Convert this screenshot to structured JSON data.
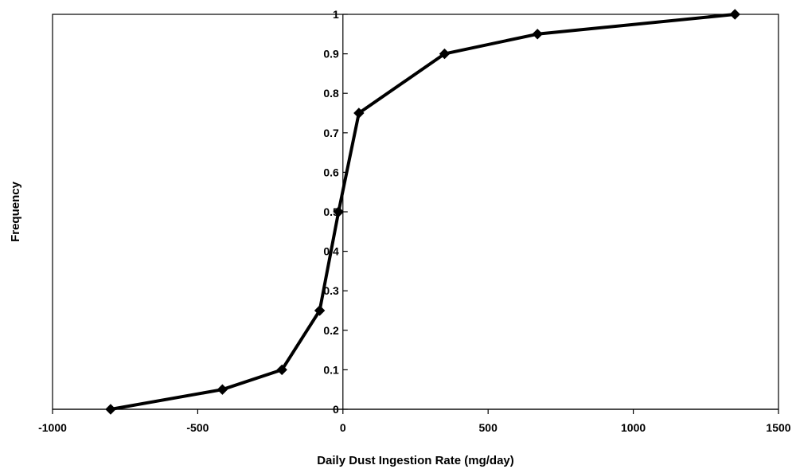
{
  "chart_data": {
    "type": "line",
    "title": "",
    "xlabel": "Daily Dust Ingestion Rate (mg/day)",
    "ylabel": "Frequency",
    "xlim": [
      -1000,
      1500
    ],
    "ylim": [
      0,
      1
    ],
    "xticks": [
      -1000,
      -500,
      0,
      500,
      1000,
      1500
    ],
    "xtick_labels": [
      "-1000",
      "-500",
      "0",
      "500",
      "1000",
      "1500"
    ],
    "yticks": [
      0,
      0.1,
      0.2,
      0.3,
      0.4,
      0.5,
      0.6,
      0.7,
      0.8,
      0.9,
      1
    ],
    "ytick_labels": [
      "0",
      "0.1",
      "0.2",
      "0.3",
      "0.4",
      "0.5",
      "0.6",
      "0.7",
      "0.8",
      "0.9",
      "1"
    ],
    "grid": false,
    "legend": "none",
    "series": [
      {
        "x": [
          -800,
          -415,
          -210,
          -80,
          -15,
          55,
          350,
          670,
          1350
        ],
        "y": [
          0,
          0.05,
          0.1,
          0.25,
          0.5,
          0.75,
          0.9,
          0.95,
          1
        ],
        "color": "#000000",
        "marker": "diamond"
      }
    ]
  }
}
